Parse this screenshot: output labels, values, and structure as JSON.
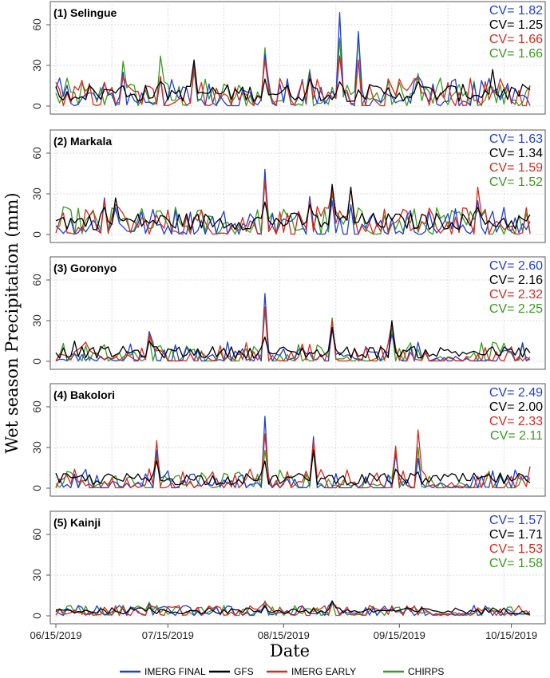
{
  "chart_data": {
    "type": "line",
    "ylabel": "Wet season Precipitation (mm)",
    "xlabel": "Date",
    "x_range": [
      "2019-06-15",
      "2019-10-20"
    ],
    "x_ticks": [
      "06/15/2019",
      "07/15/2019",
      "08/15/2019",
      "09/15/2019",
      "10/15/2019"
    ],
    "ylim": [
      0,
      70
    ],
    "y_ticks": [
      0,
      30,
      60
    ],
    "grid": true,
    "legend_position": "bottom",
    "legend": [
      {
        "name": "IMERG FINAL",
        "color": "#1f3fd6"
      },
      {
        "name": "GFS",
        "color": "#000000"
      },
      {
        "name": "IMERG EARLY",
        "color": "#d62b1f"
      },
      {
        "name": "CHIRPS",
        "color": "#3a9a20"
      }
    ],
    "panels": [
      {
        "title": "(1) Selingue",
        "cv": [
          {
            "label": "CV= 1.82",
            "color": "#1f3fd6"
          },
          {
            "label": "CV= 1.25",
            "color": "#000000"
          },
          {
            "label": "CV= 1.66",
            "color": "#d62b1f"
          },
          {
            "label": "CV= 1.66",
            "color": "#3a9a20"
          }
        ],
        "peaks": [
          {
            "x": "2019-06-29",
            "values": [
              8,
              12,
              9,
              10
            ]
          },
          {
            "x": "2019-07-03",
            "values": [
              25,
              15,
              22,
              33
            ]
          },
          {
            "x": "2019-07-13",
            "values": [
              20,
              18,
              22,
              37
            ]
          },
          {
            "x": "2019-07-22",
            "values": [
              30,
              34,
              28,
              26
            ]
          },
          {
            "x": "2019-08-10",
            "values": [
              38,
              20,
              34,
              43
            ]
          },
          {
            "x": "2019-08-22",
            "values": [
              25,
              20,
              22,
              27
            ]
          },
          {
            "x": "2019-08-30",
            "values": [
              69,
              18,
              37,
              50
            ]
          },
          {
            "x": "2019-09-04",
            "values": [
              55,
              12,
              34,
              53
            ]
          },
          {
            "x": "2019-09-20",
            "values": [
              22,
              18,
              20,
              24
            ]
          },
          {
            "x": "2019-10-10",
            "values": [
              10,
              27,
              12,
              14
            ]
          }
        ],
        "spikiness": [
          1.82,
          1.25,
          1.66,
          1.66
        ]
      },
      {
        "title": "(2) Markala",
        "cv": [
          {
            "label": "CV= 1.63",
            "color": "#1f3fd6"
          },
          {
            "label": "CV= 1.34",
            "color": "#000000"
          },
          {
            "label": "CV= 1.59",
            "color": "#d62b1f"
          },
          {
            "label": "CV= 1.52",
            "color": "#3a9a20"
          }
        ],
        "peaks": [
          {
            "x": "2019-06-28",
            "values": [
              27,
              20,
              25,
              26
            ]
          },
          {
            "x": "2019-07-01",
            "values": [
              20,
              27,
              22,
              18
            ]
          },
          {
            "x": "2019-08-10",
            "values": [
              48,
              24,
              40,
              44
            ]
          },
          {
            "x": "2019-08-22",
            "values": [
              28,
              22,
              25,
              26
            ]
          },
          {
            "x": "2019-08-28",
            "values": [
              25,
              37,
              33,
              30
            ]
          },
          {
            "x": "2019-09-02",
            "values": [
              22,
              35,
              34,
              20
            ]
          },
          {
            "x": "2019-10-06",
            "values": [
              25,
              20,
              35,
              18
            ]
          }
        ],
        "spikiness": [
          1.63,
          1.34,
          1.59,
          1.52
        ]
      },
      {
        "title": "(3) Goronyo",
        "cv": [
          {
            "label": "CV= 2.60",
            "color": "#1f3fd6"
          },
          {
            "label": "CV= 2.16",
            "color": "#000000"
          },
          {
            "label": "CV= 2.32",
            "color": "#d62b1f"
          },
          {
            "label": "CV= 2.25",
            "color": "#3a9a20"
          }
        ],
        "peaks": [
          {
            "x": "2019-06-20",
            "values": [
              6,
              15,
              7,
              5
            ]
          },
          {
            "x": "2019-07-10",
            "values": [
              22,
              15,
              20,
              18
            ]
          },
          {
            "x": "2019-08-10",
            "values": [
              50,
              18,
              40,
              38
            ]
          },
          {
            "x": "2019-08-28",
            "values": [
              24,
              25,
              30,
              32
            ]
          },
          {
            "x": "2019-09-13",
            "values": [
              20,
              30,
              28,
              24
            ]
          }
        ],
        "spikiness": [
          2.6,
          2.16,
          2.32,
          2.25
        ]
      },
      {
        "title": "(4) Bakolori",
        "cv": [
          {
            "label": "CV= 2.49",
            "color": "#1f3fd6"
          },
          {
            "label": "CV= 2.00",
            "color": "#000000"
          },
          {
            "label": "CV= 2.33",
            "color": "#d62b1f"
          },
          {
            "label": "CV= 2.11",
            "color": "#3a9a20"
          }
        ],
        "peaks": [
          {
            "x": "2019-07-12",
            "values": [
              28,
              20,
              35,
              25
            ]
          },
          {
            "x": "2019-08-10",
            "values": [
              53,
              20,
              40,
              28
            ]
          },
          {
            "x": "2019-08-23",
            "values": [
              38,
              28,
              35,
              30
            ]
          },
          {
            "x": "2019-09-14",
            "values": [
              25,
              14,
              31,
              28
            ]
          },
          {
            "x": "2019-09-20",
            "values": [
              22,
              12,
              43,
              30
            ]
          },
          {
            "x": "2019-10-20",
            "values": [
              7,
              4,
              16,
              6
            ]
          }
        ],
        "spikiness": [
          2.49,
          2.0,
          2.33,
          2.11
        ]
      },
      {
        "title": "(5) Kainji",
        "cv": [
          {
            "label": "CV= 1.57",
            "color": "#1f3fd6"
          },
          {
            "label": "CV= 1.71",
            "color": "#000000"
          },
          {
            "label": "CV= 1.53",
            "color": "#d62b1f"
          },
          {
            "label": "CV= 1.58",
            "color": "#3a9a20"
          }
        ],
        "peaks": [
          {
            "x": "2019-07-10",
            "values": [
              9,
              6,
              8,
              10
            ]
          },
          {
            "x": "2019-08-10",
            "values": [
              8,
              7,
              10,
              11
            ]
          },
          {
            "x": "2019-08-28",
            "values": [
              10,
              11,
              9,
              10
            ]
          }
        ],
        "spikiness": [
          1.57,
          1.71,
          1.53,
          1.58
        ]
      }
    ]
  }
}
